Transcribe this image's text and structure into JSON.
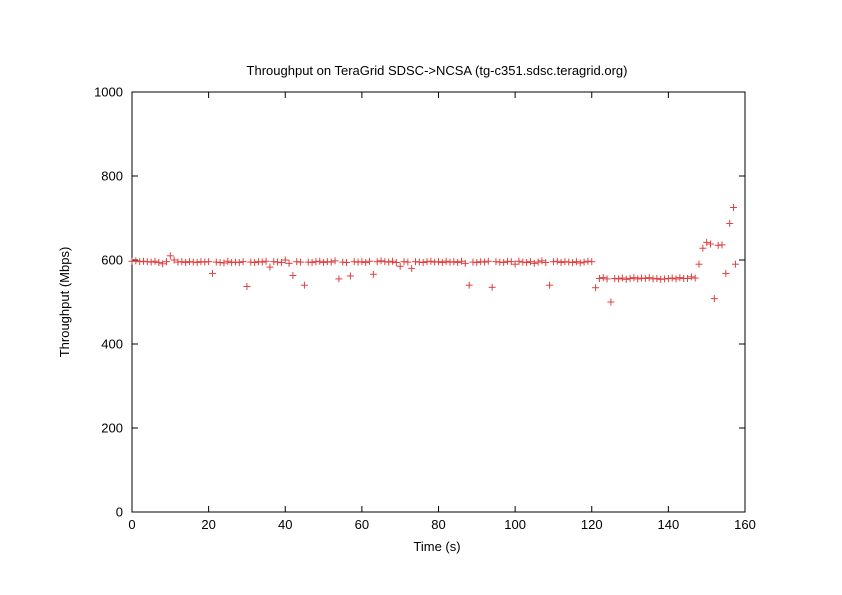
{
  "chart_data": {
    "type": "scatter",
    "title": "Throughput on TeraGrid SDSC->NCSA (tg-c351.sdsc.teragrid.org)",
    "xlabel": "Time (s)",
    "ylabel": "Throughput (Mbps)",
    "xlim": [
      0,
      160
    ],
    "ylim": [
      0,
      1000
    ],
    "xticks": [
      "0",
      "20",
      "40",
      "60",
      "80",
      "100",
      "120",
      "140",
      "160"
    ],
    "yticks": [
      "0",
      "200",
      "400",
      "600",
      "800",
      "1000"
    ],
    "grid": false,
    "marker": "plus",
    "color": "#e04040",
    "series": [
      {
        "points": [
          [
            0,
            597
          ],
          [
            1,
            598
          ],
          [
            2,
            596
          ],
          [
            3,
            597
          ],
          [
            4,
            596
          ],
          [
            5,
            595
          ],
          [
            6,
            597
          ],
          [
            7,
            594
          ],
          [
            8,
            591
          ],
          [
            9,
            596
          ],
          [
            10,
            610
          ],
          [
            11,
            600
          ],
          [
            12,
            595
          ],
          [
            13,
            596
          ],
          [
            14,
            594
          ],
          [
            15,
            596
          ],
          [
            16,
            595
          ],
          [
            17,
            594
          ],
          [
            18,
            596
          ],
          [
            19,
            595
          ],
          [
            20,
            596
          ],
          [
            21,
            568
          ],
          [
            22,
            595
          ],
          [
            23,
            594
          ],
          [
            24,
            593
          ],
          [
            25,
            597
          ],
          [
            26,
            594
          ],
          [
            27,
            595
          ],
          [
            28,
            594
          ],
          [
            29,
            596
          ],
          [
            30,
            537
          ],
          [
            31,
            595
          ],
          [
            32,
            594
          ],
          [
            33,
            596
          ],
          [
            34,
            595
          ],
          [
            35,
            597
          ],
          [
            36,
            583
          ],
          [
            37,
            596
          ],
          [
            38,
            595
          ],
          [
            39,
            594
          ],
          [
            40,
            600
          ],
          [
            41,
            592
          ],
          [
            42,
            563
          ],
          [
            43,
            596
          ],
          [
            44,
            595
          ],
          [
            45,
            540
          ],
          [
            46,
            595
          ],
          [
            47,
            594
          ],
          [
            48,
            596
          ],
          [
            49,
            597
          ],
          [
            50,
            594
          ],
          [
            51,
            596
          ],
          [
            52,
            595
          ],
          [
            53,
            598
          ],
          [
            54,
            555
          ],
          [
            55,
            595
          ],
          [
            56,
            594
          ],
          [
            57,
            562
          ],
          [
            58,
            596
          ],
          [
            59,
            595
          ],
          [
            60,
            596
          ],
          [
            61,
            594
          ],
          [
            62,
            597
          ],
          [
            63,
            566
          ],
          [
            64,
            596
          ],
          [
            65,
            598
          ],
          [
            66,
            596
          ],
          [
            67,
            595
          ],
          [
            68,
            597
          ],
          [
            69,
            594
          ],
          [
            70,
            585
          ],
          [
            71,
            596
          ],
          [
            72,
            595
          ],
          [
            73,
            580
          ],
          [
            74,
            596
          ],
          [
            75,
            595
          ],
          [
            76,
            594
          ],
          [
            77,
            596
          ],
          [
            78,
            597
          ],
          [
            79,
            595
          ],
          [
            80,
            596
          ],
          [
            81,
            594
          ],
          [
            82,
            597
          ],
          [
            83,
            595
          ],
          [
            84,
            596
          ],
          [
            85,
            594
          ],
          [
            86,
            597
          ],
          [
            87,
            592
          ],
          [
            88,
            540
          ],
          [
            89,
            595
          ],
          [
            90,
            594
          ],
          [
            91,
            596
          ],
          [
            92,
            595
          ],
          [
            93,
            597
          ],
          [
            94,
            535
          ],
          [
            95,
            596
          ],
          [
            96,
            595
          ],
          [
            97,
            594
          ],
          [
            98,
            597
          ],
          [
            99,
            596
          ],
          [
            100,
            590
          ],
          [
            101,
            597
          ],
          [
            102,
            595
          ],
          [
            103,
            594
          ],
          [
            104,
            596
          ],
          [
            105,
            592
          ],
          [
            106,
            595
          ],
          [
            107,
            598
          ],
          [
            108,
            594
          ],
          [
            109,
            540
          ],
          [
            110,
            596
          ],
          [
            111,
            597
          ],
          [
            112,
            594
          ],
          [
            113,
            596
          ],
          [
            114,
            595
          ],
          [
            115,
            594
          ],
          [
            116,
            596
          ],
          [
            117,
            593
          ],
          [
            118,
            595
          ],
          [
            119,
            597
          ],
          [
            120,
            596
          ],
          [
            121,
            534
          ],
          [
            122,
            556
          ],
          [
            123,
            558
          ],
          [
            124,
            555
          ],
          [
            125,
            500
          ],
          [
            126,
            556
          ],
          [
            127,
            555
          ],
          [
            128,
            557
          ],
          [
            129,
            554
          ],
          [
            130,
            556
          ],
          [
            131,
            558
          ],
          [
            132,
            555
          ],
          [
            133,
            557
          ],
          [
            134,
            556
          ],
          [
            135,
            558
          ],
          [
            136,
            555
          ],
          [
            137,
            556
          ],
          [
            138,
            554
          ],
          [
            139,
            555
          ],
          [
            140,
            556
          ],
          [
            141,
            557
          ],
          [
            142,
            555
          ],
          [
            143,
            558
          ],
          [
            144,
            556
          ],
          [
            145,
            556
          ],
          [
            146,
            560
          ],
          [
            147,
            557
          ],
          [
            148,
            590
          ],
          [
            149,
            628
          ],
          [
            150,
            642
          ],
          [
            151,
            638
          ],
          [
            152,
            508
          ],
          [
            153,
            635
          ],
          [
            154,
            636
          ],
          [
            155,
            568
          ],
          [
            156,
            687
          ],
          [
            157,
            725
          ],
          [
            157.5,
            590
          ]
        ]
      }
    ]
  }
}
